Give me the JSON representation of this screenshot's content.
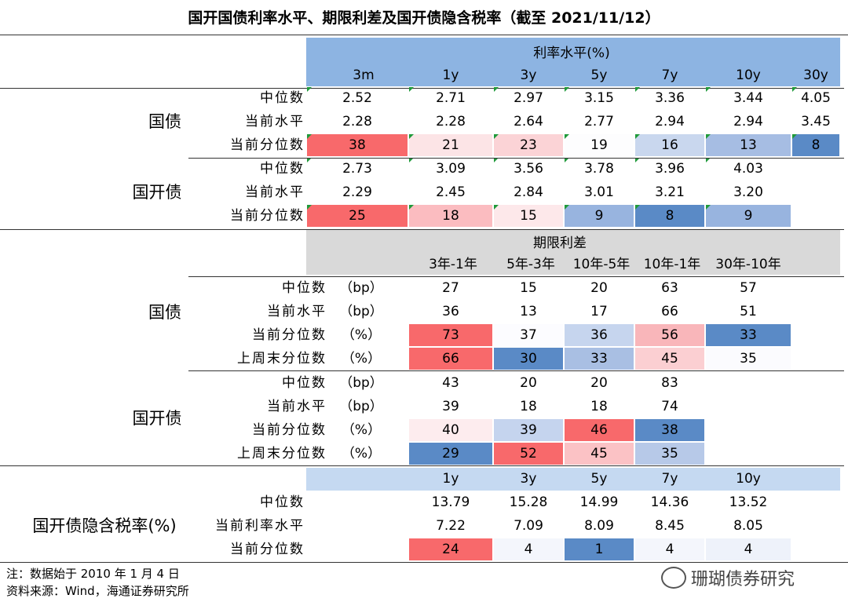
{
  "title": "国开国债利率水平、期限利差及国开债隐含税率（截至 2021/11/12）",
  "section1": {
    "header": "利率水平(%)",
    "columns": [
      "3m",
      "1y",
      "3y",
      "5y",
      "7y",
      "10y",
      "30y"
    ],
    "groups": [
      {
        "name": "国债",
        "rows": [
          {
            "label": "中位数",
            "values": [
              2.52,
              2.71,
              2.97,
              3.15,
              3.36,
              3.44,
              4.05
            ]
          },
          {
            "label": "当前水平",
            "values": [
              2.28,
              2.28,
              2.64,
              2.77,
              2.94,
              2.94,
              3.45
            ]
          },
          {
            "label": "当前分位数",
            "values": [
              38,
              21,
              23,
              19,
              16,
              13,
              8
            ],
            "colors": [
              "#f8696b",
              "#fce4e6",
              "#fbd3d6",
              "#fdfdfe",
              "#c9d7ee",
              "#a6bde3",
              "#5a8ac6"
            ]
          }
        ]
      },
      {
        "name": "国开债",
        "rows": [
          {
            "label": "中位数",
            "values": [
              2.73,
              3.09,
              3.56,
              3.78,
              3.96,
              4.03
            ]
          },
          {
            "label": "当前水平",
            "values": [
              2.29,
              2.45,
              2.84,
              3.01,
              3.21,
              "3.20"
            ]
          },
          {
            "label": "当前分位数",
            "values": [
              25,
              18,
              15,
              9,
              8,
              9
            ],
            "colors": [
              "#f8696b",
              "#fbbcc0",
              "#fde8ea",
              "#98b4df",
              "#5a8ac6",
              "#98b4df"
            ]
          }
        ]
      }
    ]
  },
  "section2": {
    "header": "期限利差",
    "columns": [
      "3年-1年",
      "5年-3年",
      "10年-5年",
      "10年-1年",
      "30年-10年"
    ],
    "groups": [
      {
        "name": "国债",
        "rows": [
          {
            "label": "中位数",
            "unit": "（bp）",
            "values": [
              27,
              15,
              20,
              63,
              57
            ]
          },
          {
            "label": "当前水平",
            "unit": "（bp）",
            "values": [
              36,
              13,
              17,
              66,
              51
            ]
          },
          {
            "label": "当前分位数",
            "unit": "（%）",
            "values": [
              73,
              37,
              36,
              56,
              33
            ],
            "colors": [
              "#f8696b",
              "#fcfcff",
              "#c6d5ee",
              "#f9b6ba",
              "#5a8ac6"
            ]
          },
          {
            "label": "上周末分位数",
            "unit": "（%）",
            "values": [
              66,
              30,
              33,
              45,
              35
            ],
            "colors": [
              "#f8696b",
              "#5a8ac6",
              "#a9bfe3",
              "#fbcfd2",
              "#fbfbfe"
            ]
          }
        ]
      },
      {
        "name": "国开债",
        "rows": [
          {
            "label": "中位数",
            "unit": "（bp）",
            "values": [
              43,
              20,
              20,
              83
            ]
          },
          {
            "label": "当前水平",
            "unit": "（bp）",
            "values": [
              39,
              18,
              18,
              74
            ]
          },
          {
            "label": "当前分位数",
            "unit": "（%）",
            "values": [
              40,
              39,
              46,
              38
            ],
            "colors": [
              "#fdecee",
              "#c5d4ee",
              "#f8696b",
              "#5a8ac6"
            ]
          },
          {
            "label": "上周末分位数",
            "unit": "（%）",
            "values": [
              29,
              52,
              45,
              35
            ],
            "colors": [
              "#5a8ac6",
              "#f8696b",
              "#fbc2c5",
              "#b7c9e8"
            ]
          }
        ]
      }
    ]
  },
  "section3": {
    "name": "国开债隐含税率(%)",
    "columns": [
      "1y",
      "3y",
      "5y",
      "7y",
      "10y"
    ],
    "rows": [
      {
        "label": "中位数",
        "values": [
          13.79,
          15.28,
          14.99,
          14.36,
          13.52
        ]
      },
      {
        "label": "当前利率水平",
        "values": [
          7.22,
          7.09,
          8.09,
          8.45,
          8.05
        ]
      },
      {
        "label": "当前分位数",
        "values": [
          24,
          4,
          1,
          4,
          4
        ],
        "colors": [
          "#f8696b",
          "#f4f6fc",
          "#5a8ac6",
          "#f4f6fc",
          "#eef2fa"
        ]
      }
    ]
  },
  "notes": [
    "注：数据始于 2010 年 1 月 4 日",
    "资料来源：Wind，海通证券研究所"
  ],
  "watermark": "珊瑚债券研究"
}
